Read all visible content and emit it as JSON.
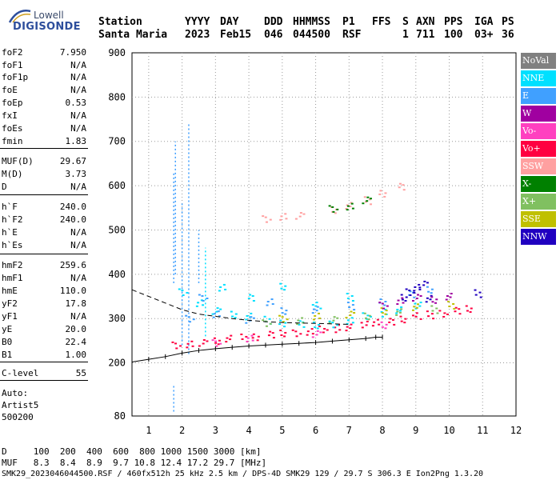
{
  "logo": {
    "line1": "Lowell",
    "line2": "DIGISONDE"
  },
  "header": {
    "labels": [
      "Station",
      "YYYY",
      "DAY",
      "DDD",
      "HHMMSS",
      "P1",
      "FFS",
      "S",
      "AXN",
      "PPS",
      "IGA",
      "PS"
    ],
    "values": [
      "Santa Maria",
      "2023",
      "Feb15",
      "046",
      "044500",
      "RSF",
      "",
      "1",
      "711",
      "100",
      "03+",
      "36"
    ]
  },
  "params": [
    {
      "name": "foF2",
      "value": "7.950"
    },
    {
      "name": "foF1",
      "value": "N/A"
    },
    {
      "name": "foF1p",
      "value": "N/A"
    },
    {
      "name": "foE",
      "value": "N/A"
    },
    {
      "name": "foEp",
      "value": "0.53"
    },
    {
      "name": "fxI",
      "value": "N/A"
    },
    {
      "name": "foEs",
      "value": "N/A"
    },
    {
      "name": "fmin",
      "value": "1.83"
    },
    {
      "name": "MUF(D)",
      "value": "29.67"
    },
    {
      "name": "M(D)",
      "value": "3.73"
    },
    {
      "name": "D",
      "value": "N/A"
    },
    {
      "name": "h`F",
      "value": "240.0"
    },
    {
      "name": "h`F2",
      "value": "240.0"
    },
    {
      "name": "h`E",
      "value": "N/A"
    },
    {
      "name": "h`Es",
      "value": "N/A"
    },
    {
      "name": "hmF2",
      "value": "259.6"
    },
    {
      "name": "hmF1",
      "value": "N/A"
    },
    {
      "name": "hmE",
      "value": "110.0"
    },
    {
      "name": "yF2",
      "value": "17.8"
    },
    {
      "name": "yF1",
      "value": "N/A"
    },
    {
      "name": "yE",
      "value": "20.0"
    },
    {
      "name": "B0",
      "value": "22.4"
    },
    {
      "name": "B1",
      "value": "1.00"
    },
    {
      "name": "C-level",
      "value": "55"
    }
  ],
  "auto": {
    "label": "Auto:",
    "name": "Artist5",
    "code": "500200"
  },
  "legend": [
    {
      "label": "NoVal",
      "color": "#808080"
    },
    {
      "label": "NNE",
      "color": "#00e0ff"
    },
    {
      "label": "E",
      "color": "#40a0ff"
    },
    {
      "label": "W",
      "color": "#a000a0"
    },
    {
      "label": "Vo-",
      "color": "#ff40c0"
    },
    {
      "label": "Vo+",
      "color": "#ff0040"
    },
    {
      "label": "SSW",
      "color": "#ffa0a0"
    },
    {
      "label": "X-",
      "color": "#008000"
    },
    {
      "label": "X+",
      "color": "#80c060"
    },
    {
      "label": "SSE",
      "color": "#c0c000"
    },
    {
      "label": "NNW",
      "color": "#2000c0"
    }
  ],
  "footer": {
    "line1": "D     100  200  400  600  800 1000 1500 3000 [km]",
    "line2": "MUF   8.3  8.4  8.9  9.7 10.8 12.4 17.2 29.7 [MHz]",
    "line3": "SMK29_2023046044500.RSF / 460fx512h 25 kHz 2.5 km / DPS-4D SMK29 129 / 29.7 S 306.3 E Ion2Png 1.3.20"
  },
  "chart_data": {
    "type": "scatter",
    "xlim": [
      0.5,
      12
    ],
    "ylim": [
      80,
      900
    ],
    "xticks": [
      1,
      2,
      3,
      4,
      5,
      6,
      7,
      8,
      9,
      10,
      11,
      12
    ],
    "yticks": [
      80,
      200,
      300,
      400,
      500,
      600,
      700,
      800,
      900
    ],
    "grid": true,
    "series": [
      {
        "name": "Vo+",
        "color": "#ff0040",
        "points": [
          [
            1.8,
            240
          ],
          [
            2.2,
            242
          ],
          [
            2.6,
            248
          ],
          [
            3.0,
            252
          ],
          [
            3.4,
            255
          ],
          [
            3.8,
            258
          ],
          [
            4.2,
            261
          ],
          [
            4.6,
            264
          ],
          [
            5.0,
            267
          ],
          [
            5.4,
            270
          ],
          [
            5.8,
            273
          ],
          [
            6.2,
            276
          ],
          [
            6.6,
            279
          ],
          [
            7.0,
            283
          ],
          [
            7.4,
            287
          ],
          [
            7.8,
            291
          ],
          [
            8.2,
            296
          ],
          [
            8.6,
            301
          ],
          [
            9.0,
            306
          ],
          [
            9.4,
            310
          ],
          [
            9.8,
            314
          ],
          [
            10.2,
            318
          ],
          [
            10.6,
            322
          ]
        ]
      },
      {
        "name": "NNE",
        "color": "#00e0ff",
        "points": [
          [
            2.0,
            360
          ],
          [
            2.5,
            335
          ],
          [
            3.0,
            320
          ],
          [
            3.5,
            312
          ],
          [
            4.0,
            305
          ],
          [
            4.5,
            298
          ],
          [
            5.0,
            292
          ],
          [
            5.5,
            288
          ],
          [
            6.0,
            285
          ],
          [
            6.5,
            290
          ],
          [
            7.0,
            298
          ],
          [
            7.5,
            306
          ],
          [
            8.0,
            314
          ],
          [
            8.5,
            322
          ],
          [
            9.0,
            330
          ],
          [
            3.2,
            370
          ],
          [
            4.0,
            350
          ],
          [
            5.0,
            375
          ],
          [
            6.0,
            330
          ],
          [
            7.0,
            350
          ]
        ]
      },
      {
        "name": "E",
        "color": "#40a0ff",
        "points": [
          [
            2.2,
            300
          ],
          [
            3.0,
            310
          ],
          [
            4.0,
            300
          ],
          [
            5.0,
            320
          ],
          [
            6.0,
            320
          ],
          [
            7.0,
            330
          ],
          [
            8.0,
            340
          ],
          [
            8.8,
            355
          ],
          [
            9.4,
            365
          ],
          [
            2.6,
            350
          ],
          [
            4.6,
            340
          ]
        ]
      },
      {
        "name": "SSE",
        "color": "#c0c000",
        "points": [
          [
            5.0,
            300
          ],
          [
            6.0,
            305
          ],
          [
            7.0,
            312
          ],
          [
            8.0,
            320
          ],
          [
            9.0,
            326
          ],
          [
            10.0,
            332
          ]
        ]
      },
      {
        "name": "X+",
        "color": "#80c060",
        "points": [
          [
            4.5,
            290
          ],
          [
            5.5,
            295
          ],
          [
            6.5,
            300
          ],
          [
            7.5,
            308
          ],
          [
            8.5,
            315
          ],
          [
            9.5,
            322
          ]
        ]
      },
      {
        "name": "NNW",
        "color": "#2000c0",
        "points": [
          [
            8.8,
            360
          ],
          [
            9.0,
            370
          ],
          [
            9.2,
            380
          ],
          [
            8.6,
            350
          ],
          [
            9.4,
            345
          ],
          [
            10.8,
            358
          ]
        ]
      },
      {
        "name": "W",
        "color": "#a000a0",
        "points": [
          [
            8.0,
            330
          ],
          [
            8.5,
            340
          ],
          [
            9.0,
            350
          ],
          [
            9.5,
            345
          ],
          [
            10.0,
            350
          ]
        ]
      },
      {
        "name": "SSW",
        "color": "#ffa0a0",
        "points": [
          [
            4.5,
            525
          ],
          [
            5.0,
            530
          ],
          [
            5.5,
            535
          ],
          [
            6.5,
            548
          ],
          [
            7.0,
            555
          ],
          [
            7.5,
            568
          ],
          [
            8.0,
            585
          ],
          [
            8.5,
            598
          ]
        ]
      },
      {
        "name": "Vo-",
        "color": "#ff40c0",
        "points": [
          [
            3.0,
            245
          ],
          [
            4.0,
            255
          ],
          [
            6.0,
            268
          ],
          [
            8.0,
            288
          ]
        ]
      },
      {
        "name": "X-",
        "color": "#008000",
        "points": [
          [
            6.5,
            548
          ],
          [
            7.0,
            553
          ],
          [
            7.5,
            570
          ]
        ]
      }
    ],
    "trace_virtual": [
      [
        0.5,
        202
      ],
      [
        1.0,
        208
      ],
      [
        1.5,
        214
      ],
      [
        2.0,
        222
      ],
      [
        2.5,
        228
      ],
      [
        3.0,
        232
      ],
      [
        3.5,
        235
      ],
      [
        4.0,
        238
      ],
      [
        4.5,
        240
      ],
      [
        5.0,
        242
      ],
      [
        5.5,
        244
      ],
      [
        6.0,
        246
      ],
      [
        6.5,
        249
      ],
      [
        7.0,
        252
      ],
      [
        7.5,
        255
      ],
      [
        7.8,
        258
      ],
      [
        8.0,
        258
      ]
    ],
    "trace_profile": [
      [
        0.5,
        365
      ],
      [
        1.0,
        350
      ],
      [
        1.5,
        335
      ],
      [
        2.0,
        320
      ],
      [
        2.5,
        310
      ],
      [
        3.0,
        305
      ],
      [
        3.5,
        300
      ],
      [
        4.0,
        296
      ],
      [
        4.5,
        293
      ],
      [
        5.0,
        291
      ],
      [
        5.5,
        290
      ],
      [
        6.0,
        289
      ],
      [
        6.5,
        288
      ],
      [
        7.0,
        287
      ]
    ],
    "vertical_streaks": [
      {
        "x": 1.75,
        "y1": 380,
        "y2": 630,
        "color": "#40a0ff"
      },
      {
        "x": 1.8,
        "y1": 400,
        "y2": 700,
        "color": "#40a0ff"
      },
      {
        "x": 2.0,
        "y1": 240,
        "y2": 560,
        "color": "#40a0ff"
      },
      {
        "x": 2.2,
        "y1": 220,
        "y2": 740,
        "color": "#40a0ff"
      },
      {
        "x": 2.5,
        "y1": 380,
        "y2": 500,
        "color": "#40a0ff"
      },
      {
        "x": 2.7,
        "y1": 260,
        "y2": 460,
        "color": "#00e0ff"
      },
      {
        "x": 1.75,
        "y1": 90,
        "y2": 150,
        "color": "#40a0ff"
      }
    ]
  }
}
